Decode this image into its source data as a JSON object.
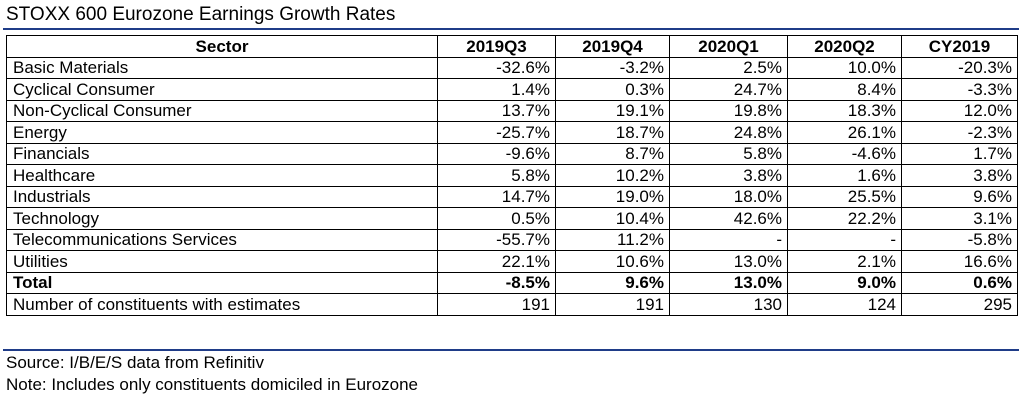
{
  "title": "STOXX 600 Eurozone Earnings Growth Rates",
  "accent_color": "#1f3c88",
  "table": {
    "headers": [
      "Sector",
      "2019Q3",
      "2019Q4",
      "2020Q1",
      "2020Q2",
      "CY2019"
    ],
    "rows": [
      [
        "Basic Materials",
        "-32.6%",
        "-3.2%",
        "2.5%",
        "10.0%",
        "-20.3%"
      ],
      [
        "Cyclical Consumer",
        "1.4%",
        "0.3%",
        "24.7%",
        "8.4%",
        "-3.3%"
      ],
      [
        "Non-Cyclical Consumer",
        "13.7%",
        "19.1%",
        "19.8%",
        "18.3%",
        "12.0%"
      ],
      [
        "Energy",
        "-25.7%",
        "18.7%",
        "24.8%",
        "26.1%",
        "-2.3%"
      ],
      [
        "Financials",
        "-9.6%",
        "8.7%",
        "5.8%",
        "-4.6%",
        "1.7%"
      ],
      [
        "Healthcare",
        "5.8%",
        "10.2%",
        "3.8%",
        "1.6%",
        "3.8%"
      ],
      [
        "Industrials",
        "14.7%",
        "19.0%",
        "18.0%",
        "25.5%",
        "9.6%"
      ],
      [
        "Technology",
        "0.5%",
        "10.4%",
        "42.6%",
        "22.2%",
        "3.1%"
      ],
      [
        "Telecommunications Services",
        "-55.7%",
        "11.2%",
        "-",
        "-",
        "-5.8%"
      ],
      [
        "Utilities",
        "22.1%",
        "10.6%",
        "13.0%",
        "2.1%",
        "16.6%"
      ],
      [
        "Total",
        "-8.5%",
        "9.6%",
        "13.0%",
        "9.0%",
        "0.6%"
      ],
      [
        "Number of constituents with estimates",
        "191",
        "191",
        "130",
        "124",
        "295"
      ]
    ]
  },
  "footer": {
    "source": "Source: I/B/E/S data from Refinitiv",
    "note": "Note: Includes only constituents domiciled in Eurozone"
  }
}
